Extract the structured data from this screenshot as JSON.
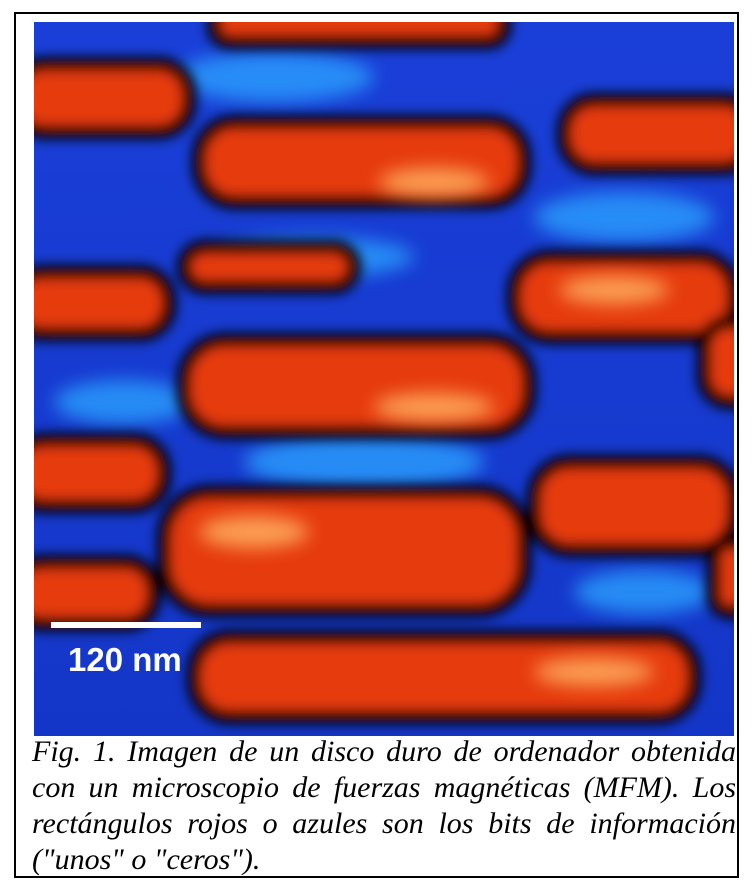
{
  "figure": {
    "scale_label": "120 nm",
    "caption": "Fig. 1. Imagen de un disco duro de ordenador obtenida con un microscopio de fuerzas magnéticas (MFM). Los rectángulos rojos o azules son los bits de información (\"unos\" o \"ceros\")."
  }
}
